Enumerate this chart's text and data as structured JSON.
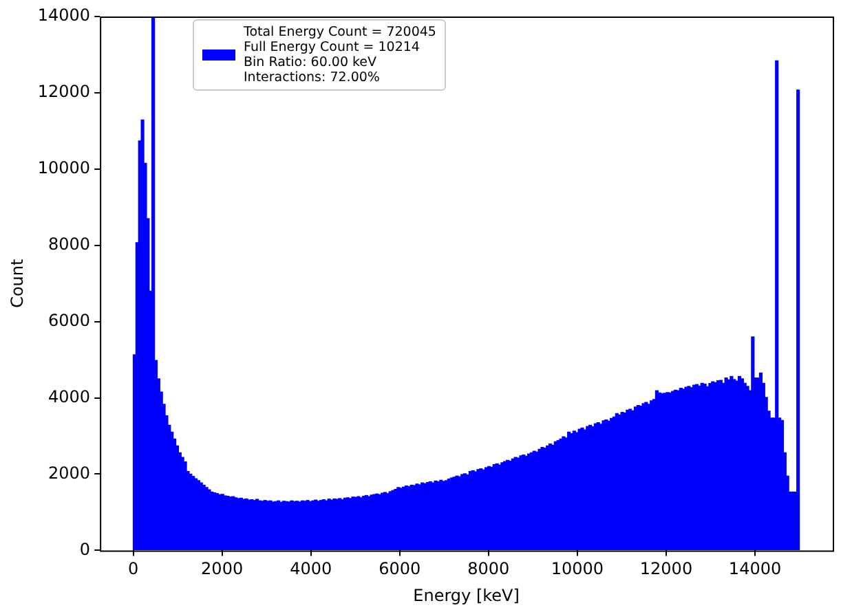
{
  "chart_data": {
    "type": "histogram",
    "xlabel": "Energy [keV]",
    "ylabel": "Count",
    "xlim": [
      -750,
      15750
    ],
    "xticks": [
      0,
      2000,
      4000,
      6000,
      8000,
      10000,
      12000,
      14000
    ],
    "ylim": [
      0,
      14000
    ],
    "yticks": [
      0,
      2000,
      4000,
      6000,
      8000,
      10000,
      12000,
      14000
    ],
    "grid": false,
    "legend": "top left",
    "bins": [
      0,
      60,
      120,
      180,
      240,
      300,
      360,
      420,
      480,
      540,
      600,
      660,
      720,
      780,
      840,
      900,
      960,
      1020,
      1080,
      1140,
      1200,
      1260,
      1320,
      1380,
      1440,
      1500,
      1560,
      1620,
      1680,
      1740,
      1800,
      1860,
      1920,
      1980,
      2040,
      2100,
      2160,
      2220,
      2280,
      2340,
      2400,
      2460,
      2520,
      2580,
      2640,
      2700,
      2760,
      2820,
      2880,
      2940,
      3000,
      3060,
      3120,
      3180,
      3240,
      3300,
      3360,
      3420,
      3480,
      3540,
      3600,
      3660,
      3720,
      3780,
      3840,
      3900,
      3960,
      4020,
      4080,
      4140,
      4200,
      4260,
      4320,
      4380,
      4440,
      4500,
      4560,
      4620,
      4680,
      4740,
      4800,
      4860,
      4920,
      4980,
      5040,
      5100,
      5160,
      5220,
      5280,
      5340,
      5400,
      5460,
      5520,
      5580,
      5640,
      5700,
      5760,
      5820,
      5880,
      5940,
      6000,
      6060,
      6120,
      6180,
      6240,
      6300,
      6360,
      6420,
      6480,
      6540,
      6600,
      6660,
      6720,
      6780,
      6840,
      6900,
      6960,
      7020,
      7080,
      7140,
      7200,
      7260,
      7320,
      7380,
      7440,
      7500,
      7560,
      7620,
      7680,
      7740,
      7800,
      7860,
      7920,
      7980,
      8040,
      8100,
      8160,
      8220,
      8280,
      8340,
      8400,
      8460,
      8520,
      8580,
      8640,
      8700,
      8760,
      8820,
      8880,
      8940,
      9000,
      9060,
      9120,
      9180,
      9240,
      9300,
      9360,
      9420,
      9480,
      9540,
      9600,
      9660,
      9720,
      9780,
      9840,
      9900,
      9960,
      10020,
      10080,
      10140,
      10200,
      10260,
      10320,
      10380,
      10440,
      10500,
      10560,
      10620,
      10680,
      10740,
      10800,
      10860,
      10920,
      10980,
      11040,
      11100,
      11160,
      11220,
      11280,
      11340,
      11400,
      11460,
      11520,
      11580,
      11640,
      11700,
      11760,
      11820,
      11880,
      11940,
      12000,
      12060,
      12120,
      12180,
      12240,
      12300,
      12360,
      12420,
      12480,
      12540,
      12600,
      12660,
      12720,
      12780,
      12840,
      12900,
      12960,
      13020,
      13080,
      13140,
      13200,
      13260,
      13320,
      13380,
      13440,
      13500,
      13560,
      13620,
      13680,
      13740,
      13800,
      13860,
      13920,
      13980,
      14040,
      14100,
      14160,
      14220,
      14280,
      14340,
      14400,
      14460,
      14520,
      14580,
      14640,
      14700,
      14760,
      14820,
      14880,
      14940,
      15000
    ],
    "series": [
      {
        "name": "Total Energy Count = 720045\nFull Energy Count = 10214\nBin Ratio: 60.00 keV\nInteractions: 72.00%",
        "color": "#0000ff",
        "values": [
          5130,
          8070,
          10740,
          11290,
          10150,
          8700,
          6800,
          14000,
          4980,
          4500,
          4150,
          3830,
          3530,
          3280,
          3100,
          2920,
          2740,
          2560,
          2440,
          2320,
          2070,
          2000,
          1940,
          1880,
          1830,
          1770,
          1710,
          1650,
          1590,
          1530,
          1510,
          1490,
          1460,
          1470,
          1430,
          1420,
          1400,
          1410,
          1380,
          1360,
          1370,
          1340,
          1350,
          1320,
          1330,
          1310,
          1340,
          1300,
          1290,
          1310,
          1290,
          1300,
          1270,
          1280,
          1300,
          1260,
          1290,
          1280,
          1270,
          1300,
          1280,
          1290,
          1270,
          1300,
          1290,
          1310,
          1280,
          1300,
          1320,
          1290,
          1310,
          1330,
          1300,
          1345,
          1320,
          1350,
          1340,
          1360,
          1330,
          1370,
          1380,
          1360,
          1400,
          1390,
          1410,
          1380,
          1420,
          1440,
          1410,
          1450,
          1465,
          1480,
          1460,
          1500,
          1520,
          1490,
          1540,
          1570,
          1600,
          1650,
          1630,
          1660,
          1690,
          1670,
          1710,
          1700,
          1740,
          1720,
          1770,
          1750,
          1780,
          1800,
          1770,
          1820,
          1800,
          1840,
          1810,
          1830,
          1870,
          1900,
          1920,
          1950,
          1930,
          1990,
          2010,
          1980,
          2070,
          2090,
          2060,
          2120,
          2140,
          2110,
          2170,
          2200,
          2180,
          2250,
          2270,
          2240,
          2300,
          2330,
          2360,
          2340,
          2400,
          2440,
          2420,
          2480,
          2500,
          2470,
          2530,
          2560,
          2600,
          2580,
          2650,
          2700,
          2680,
          2740,
          2790,
          2760,
          2850,
          2880,
          2920,
          2980,
          2950,
          3100,
          3060,
          3130,
          3090,
          3180,
          3210,
          3160,
          3250,
          3280,
          3240,
          3320,
          3350,
          3310,
          3400,
          3420,
          3390,
          3460,
          3500,
          3590,
          3550,
          3620,
          3600,
          3680,
          3700,
          3660,
          3760,
          3800,
          3780,
          3850,
          3880,
          3830,
          3920,
          3960,
          4190,
          4130,
          4110,
          4120,
          4140,
          4130,
          4170,
          4200,
          4190,
          4250,
          4230,
          4280,
          4300,
          4270,
          4330,
          4350,
          4310,
          4380,
          4360,
          4290,
          4375,
          4420,
          4400,
          4450,
          4460,
          4380,
          4520,
          4470,
          4560,
          4480,
          4440,
          4560,
          4500,
          4380,
          4300,
          4190,
          5600,
          4520,
          4520,
          4650,
          4380,
          4010,
          3650,
          3470,
          3470,
          12840,
          3470,
          3410,
          2560,
          1950,
          1530,
          1530,
          1530,
          12070
        ]
      }
    ]
  }
}
